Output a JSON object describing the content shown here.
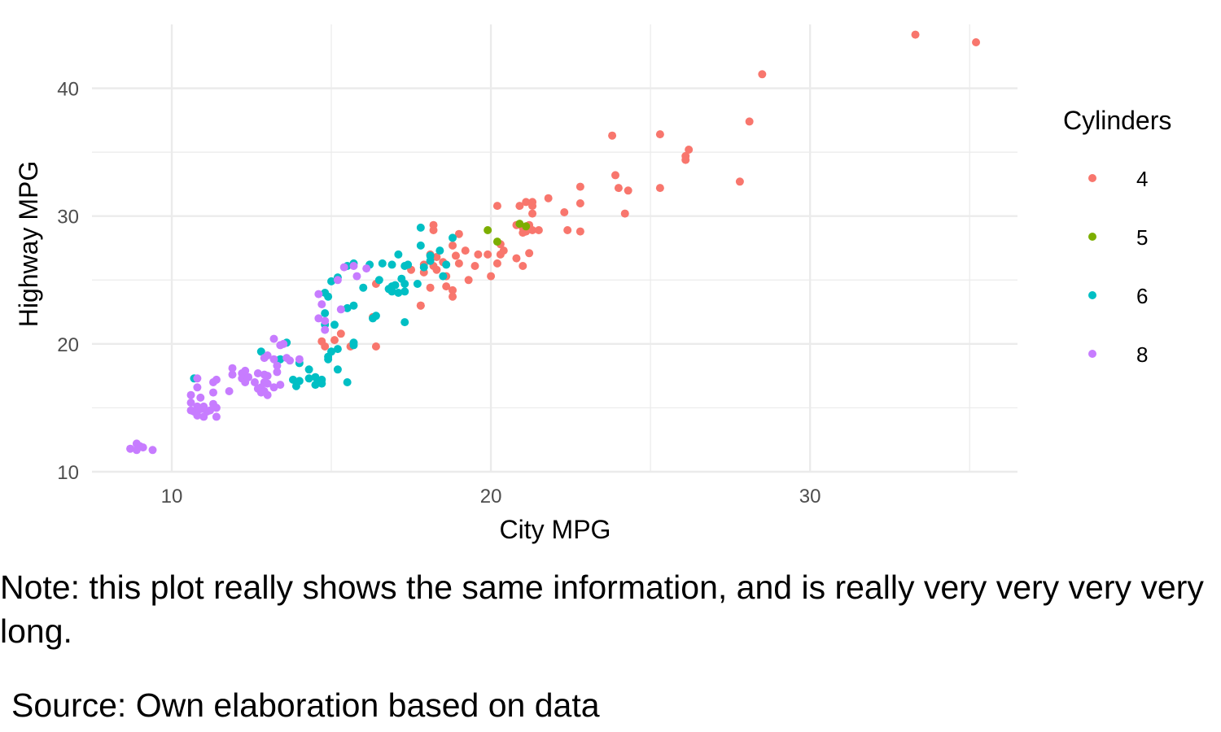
{
  "chart_data": {
    "type": "scatter",
    "title": "",
    "xlabel": "City MPG",
    "ylabel": "Highway MPG",
    "xlim": [
      7.5,
      36.5
    ],
    "ylim": [
      10,
      45
    ],
    "x_ticks": [
      10,
      20,
      30
    ],
    "y_ticks": [
      10,
      20,
      30,
      40
    ],
    "grid": true,
    "legend_title": "Cylinders",
    "legend_position": "right",
    "series": [
      {
        "name": "4",
        "color": "#F8766D",
        "points": [
          [
            33.3,
            44.2
          ],
          [
            35.2,
            43.6
          ],
          [
            28.5,
            41.1
          ],
          [
            28.1,
            37.4
          ],
          [
            23.8,
            36.3
          ],
          [
            25.3,
            36.4
          ],
          [
            26.2,
            35.2
          ],
          [
            26.1,
            34.7
          ],
          [
            26.1,
            34.4
          ],
          [
            23.9,
            33.2
          ],
          [
            27.8,
            32.7
          ],
          [
            22.8,
            32.3
          ],
          [
            24.0,
            32.2
          ],
          [
            24.3,
            32.0
          ],
          [
            25.3,
            32.2
          ],
          [
            21.8,
            31.4
          ],
          [
            21.3,
            31.1
          ],
          [
            21.1,
            31.1
          ],
          [
            21.3,
            30.8
          ],
          [
            20.9,
            30.8
          ],
          [
            20.2,
            30.8
          ],
          [
            22.8,
            31.0
          ],
          [
            22.3,
            30.3
          ],
          [
            24.2,
            30.2
          ],
          [
            21.3,
            30.2
          ],
          [
            20.8,
            29.3
          ],
          [
            21.2,
            29.3
          ],
          [
            21.0,
            29.1
          ],
          [
            18.2,
            29.3
          ],
          [
            18.2,
            28.9
          ],
          [
            21.1,
            28.8
          ],
          [
            21.3,
            28.9
          ],
          [
            21.5,
            28.9
          ],
          [
            21.0,
            28.7
          ],
          [
            22.4,
            28.9
          ],
          [
            22.8,
            28.8
          ],
          [
            19.0,
            28.6
          ],
          [
            18.8,
            27.7
          ],
          [
            20.3,
            27.8
          ],
          [
            20.4,
            27.3
          ],
          [
            20.3,
            27.0
          ],
          [
            19.9,
            27.0
          ],
          [
            19.2,
            27.3
          ],
          [
            18.9,
            26.9
          ],
          [
            19.6,
            27.0
          ],
          [
            18.3,
            26.8
          ],
          [
            18.1,
            27.0
          ],
          [
            21.2,
            27.1
          ],
          [
            20.8,
            26.7
          ],
          [
            18.5,
            26.4
          ],
          [
            18.2,
            26.1
          ],
          [
            17.9,
            26.2
          ],
          [
            19.0,
            26.3
          ],
          [
            19.5,
            26.1
          ],
          [
            20.2,
            26.3
          ],
          [
            21.0,
            26.1
          ],
          [
            17.5,
            25.8
          ],
          [
            18.3,
            25.8
          ],
          [
            17.9,
            25.6
          ],
          [
            18.6,
            25.3
          ],
          [
            20.0,
            25.3
          ],
          [
            19.3,
            25.0
          ],
          [
            18.6,
            24.5
          ],
          [
            18.8,
            24.2
          ],
          [
            18.8,
            23.7
          ],
          [
            17.8,
            23.0
          ],
          [
            16.4,
            24.7
          ],
          [
            17.8,
            23.0
          ],
          [
            16.3,
            22.1
          ],
          [
            15.1,
            20.3
          ],
          [
            14.8,
            19.8
          ],
          [
            15.6,
            19.8
          ],
          [
            16.4,
            19.8
          ],
          [
            15.3,
            20.8
          ],
          [
            14.7,
            20.2
          ],
          [
            18.1,
            24.4
          ]
        ]
      },
      {
        "name": "5",
        "color": "#7CAE00",
        "points": [
          [
            19.9,
            28.9
          ],
          [
            20.9,
            29.4
          ],
          [
            21.1,
            29.2
          ],
          [
            20.2,
            28.0
          ]
        ]
      },
      {
        "name": "6",
        "color": "#00BFC4",
        "points": [
          [
            17.8,
            29.1
          ],
          [
            18.8,
            28.3
          ],
          [
            17.8,
            27.7
          ],
          [
            18.4,
            27.3
          ],
          [
            18.1,
            26.9
          ],
          [
            17.1,
            27.0
          ],
          [
            18.1,
            26.5
          ],
          [
            17.4,
            26.2
          ],
          [
            18.6,
            26.2
          ],
          [
            17.9,
            26.0
          ],
          [
            17.3,
            26.1
          ],
          [
            16.9,
            26.2
          ],
          [
            16.6,
            26.3
          ],
          [
            16.2,
            26.2
          ],
          [
            15.7,
            26.3
          ],
          [
            15.5,
            26.1
          ],
          [
            15.2,
            25.2
          ],
          [
            15.0,
            24.9
          ],
          [
            16.5,
            25.0
          ],
          [
            17.2,
            25.1
          ],
          [
            17.0,
            24.6
          ],
          [
            17.3,
            24.7
          ],
          [
            16.9,
            24.1
          ],
          [
            17.1,
            24.0
          ],
          [
            17.3,
            24.1
          ],
          [
            16.8,
            24.3
          ],
          [
            16.9,
            24.5
          ],
          [
            17.7,
            24.7
          ],
          [
            18.5,
            25.3
          ],
          [
            16.0,
            24.4
          ],
          [
            14.8,
            24.0
          ],
          [
            14.9,
            23.7
          ],
          [
            15.7,
            23.0
          ],
          [
            15.5,
            22.8
          ],
          [
            14.8,
            22.4
          ],
          [
            16.3,
            22.0
          ],
          [
            16.4,
            22.2
          ],
          [
            17.3,
            21.7
          ],
          [
            15.1,
            21.5
          ],
          [
            14.8,
            21.5
          ],
          [
            15.7,
            20.1
          ],
          [
            15.7,
            19.9
          ],
          [
            15.2,
            19.6
          ],
          [
            15.0,
            19.4
          ],
          [
            14.9,
            19.0
          ],
          [
            13.6,
            20.1
          ],
          [
            13.4,
            18.8
          ],
          [
            12.8,
            19.4
          ],
          [
            14.9,
            18.8
          ],
          [
            14.0,
            18.5
          ],
          [
            14.3,
            18.0
          ],
          [
            15.2,
            18.0
          ],
          [
            14.7,
            17.2
          ],
          [
            15.5,
            17.0
          ],
          [
            14.5,
            17.4
          ],
          [
            14.3,
            17.3
          ],
          [
            14.6,
            17.0
          ],
          [
            14.0,
            17.1
          ],
          [
            14.5,
            16.8
          ],
          [
            13.9,
            16.7
          ],
          [
            13.8,
            17.2
          ],
          [
            14.7,
            16.9
          ],
          [
            10.7,
            17.3
          ]
        ]
      },
      {
        "name": "8",
        "color": "#C77CFF",
        "points": [
          [
            15.4,
            26.0
          ],
          [
            15.7,
            26.1
          ],
          [
            16.1,
            25.9
          ],
          [
            15.8,
            25.3
          ],
          [
            15.2,
            25.0
          ],
          [
            14.6,
            23.9
          ],
          [
            14.7,
            23.1
          ],
          [
            15.3,
            22.7
          ],
          [
            14.6,
            22.0
          ],
          [
            14.8,
            21.8
          ],
          [
            14.8,
            21.1
          ],
          [
            13.2,
            20.4
          ],
          [
            13.4,
            19.9
          ],
          [
            13.5,
            20.0
          ],
          [
            13.0,
            19.1
          ],
          [
            13.2,
            18.8
          ],
          [
            13.6,
            18.9
          ],
          [
            13.7,
            18.7
          ],
          [
            14.0,
            18.8
          ],
          [
            12.9,
            18.9
          ],
          [
            13.3,
            18.3
          ],
          [
            13.3,
            17.8
          ],
          [
            13.0,
            17.5
          ],
          [
            12.7,
            17.7
          ],
          [
            12.4,
            17.4
          ],
          [
            12.9,
            17.6
          ],
          [
            11.9,
            18.1
          ],
          [
            11.9,
            17.6
          ],
          [
            12.2,
            17.7
          ],
          [
            12.3,
            17.9
          ],
          [
            12.2,
            17.3
          ],
          [
            11.4,
            17.2
          ],
          [
            11.3,
            17.0
          ],
          [
            12.3,
            17.0
          ],
          [
            12.6,
            17.0
          ],
          [
            12.9,
            17.0
          ],
          [
            13.0,
            16.9
          ],
          [
            13.4,
            16.8
          ],
          [
            13.2,
            16.6
          ],
          [
            12.7,
            16.5
          ],
          [
            12.8,
            16.6
          ],
          [
            12.9,
            16.3
          ],
          [
            13.0,
            16.0
          ],
          [
            12.8,
            16.2
          ],
          [
            11.8,
            16.3
          ],
          [
            11.3,
            16.2
          ],
          [
            10.9,
            15.8
          ],
          [
            10.6,
            16.0
          ],
          [
            10.8,
            16.6
          ],
          [
            10.8,
            17.3
          ],
          [
            10.6,
            15.4
          ],
          [
            10.8,
            15.1
          ],
          [
            11.0,
            15.1
          ],
          [
            11.3,
            15.3
          ],
          [
            11.4,
            15.0
          ],
          [
            11.2,
            14.8
          ],
          [
            11.1,
            14.7
          ],
          [
            10.9,
            14.9
          ],
          [
            10.7,
            14.7
          ],
          [
            10.8,
            14.4
          ],
          [
            11.0,
            14.3
          ],
          [
            11.4,
            14.3
          ],
          [
            10.6,
            14.8
          ],
          [
            9.4,
            11.7
          ],
          [
            9.0,
            12.0
          ],
          [
            9.1,
            11.9
          ],
          [
            8.9,
            11.7
          ],
          [
            8.7,
            11.8
          ],
          [
            8.9,
            12.2
          ]
        ]
      }
    ]
  },
  "caption": {
    "note": "Note: this plot really shows the same information, and is really very very very very long.",
    "source": " Source: Own elaboration based on data"
  }
}
